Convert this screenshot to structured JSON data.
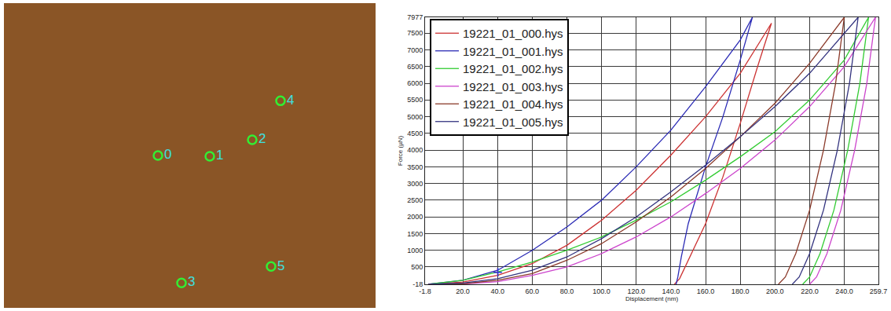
{
  "chart_data": [
    {
      "type": "scatter",
      "x": [
        196,
        262,
        316,
        226,
        352,
        340
      ],
      "values": [
        195,
        196,
        175,
        358,
        125,
        337
      ],
      "labels": [
        "0",
        "1",
        "2",
        "3",
        "4",
        "5"
      ],
      "color": "#33ee33",
      "marker": "circle-open",
      "xlim": [
        0,
        473
      ],
      "ylim": [
        390,
        0
      ],
      "tick_labels": false,
      "grid": false
    },
    {
      "type": "line",
      "xlabel": "Displacement (nm)",
      "ylabel": "Force (µN)",
      "xlim": [
        -1.8,
        259.7
      ],
      "ylim": [
        -18,
        7977
      ],
      "xticks": [
        -1.8,
        {
          "value": 20,
          "label": "20.0"
        },
        {
          "value": 40,
          "label": "40.0"
        },
        {
          "value": 60,
          "label": "60.0"
        },
        {
          "value": 80,
          "label": "80.0"
        },
        {
          "value": 100,
          "label": "100.0"
        },
        {
          "value": 120,
          "label": "120.0"
        },
        {
          "value": 140,
          "label": "140.0"
        },
        {
          "value": 160,
          "label": "160.0"
        },
        {
          "value": 180,
          "label": "180.0"
        },
        {
          "value": 200,
          "label": "200.0"
        },
        {
          "value": 220,
          "label": "220.0"
        },
        {
          "value": 240,
          "label": "240.0"
        },
        259.7
      ],
      "yticks": [
        -18,
        500,
        1000,
        1500,
        2000,
        2500,
        3000,
        3500,
        4000,
        4500,
        5000,
        5500,
        6000,
        6500,
        7000,
        7500,
        7977
      ],
      "grid": true,
      "legend": "top-left",
      "annotations": [
        {
          "x": 40,
          "y": 350,
          "text": "+",
          "color": "#3333cc"
        }
      ],
      "series": [
        {
          "name": "19221_01_000.hys",
          "color": "#cc3333",
          "x": [
            0,
            20,
            40,
            60,
            80,
            100,
            120,
            140,
            160,
            180,
            198,
            190,
            180,
            170,
            160,
            150,
            145,
            142
          ],
          "values": [
            -18,
            50,
            250,
            600,
            1150,
            1900,
            2800,
            3850,
            5000,
            6300,
            7800,
            6500,
            4800,
            3200,
            1800,
            700,
            150,
            -18
          ]
        },
        {
          "name": "19221_01_001.hys",
          "color": "#2b2bb5",
          "x": [
            0,
            20,
            40,
            60,
            80,
            100,
            120,
            140,
            160,
            180,
            187,
            180,
            170,
            160,
            150,
            146,
            144,
            143
          ],
          "values": [
            -18,
            100,
            400,
            1000,
            1700,
            2500,
            3500,
            4600,
            5900,
            7300,
            7977,
            6700,
            5000,
            3500,
            1800,
            800,
            200,
            -18
          ]
        },
        {
          "name": "19221_01_002.hys",
          "color": "#33cc33",
          "x": [
            0,
            20,
            40,
            60,
            80,
            100,
            120,
            140,
            160,
            180,
            200,
            220,
            240,
            254,
            249,
            242,
            234,
            226,
            220,
            216
          ],
          "values": [
            -18,
            100,
            350,
            650,
            1000,
            1400,
            1900,
            2450,
            3100,
            3800,
            4550,
            5500,
            6700,
            7977,
            6000,
            4000,
            2200,
            900,
            200,
            -18
          ]
        },
        {
          "name": "19221_01_003.hys",
          "color": "#cc44cc",
          "x": [
            0,
            20,
            40,
            60,
            80,
            100,
            120,
            140,
            160,
            180,
            200,
            220,
            240,
            258,
            253,
            246,
            238,
            230,
            224,
            220
          ],
          "values": [
            -18,
            -10,
            60,
            250,
            500,
            900,
            1400,
            2000,
            2700,
            3450,
            4300,
            5300,
            6500,
            7977,
            6000,
            4000,
            2200,
            900,
            200,
            -18
          ]
        },
        {
          "name": "19221_01_004.hys",
          "color": "#8b3a2a",
          "x": [
            0,
            20,
            40,
            60,
            80,
            100,
            120,
            140,
            160,
            180,
            200,
            220,
            240,
            235,
            228,
            220,
            212,
            206,
            202
          ],
          "values": [
            -18,
            0,
            100,
            300,
            700,
            1200,
            1850,
            2600,
            3450,
            4400,
            5400,
            6600,
            7977,
            6000,
            4000,
            2200,
            900,
            200,
            -18
          ]
        },
        {
          "name": "19221_01_005.hys",
          "color": "#33337f",
          "x": [
            0,
            20,
            40,
            60,
            80,
            100,
            120,
            140,
            160,
            180,
            200,
            220,
            248,
            243,
            236,
            228,
            220,
            214,
            210
          ],
          "values": [
            -18,
            20,
            150,
            400,
            800,
            1350,
            2000,
            2750,
            3550,
            4400,
            5300,
            6300,
            7977,
            6000,
            4000,
            2200,
            900,
            200,
            -18
          ]
        }
      ]
    }
  ]
}
